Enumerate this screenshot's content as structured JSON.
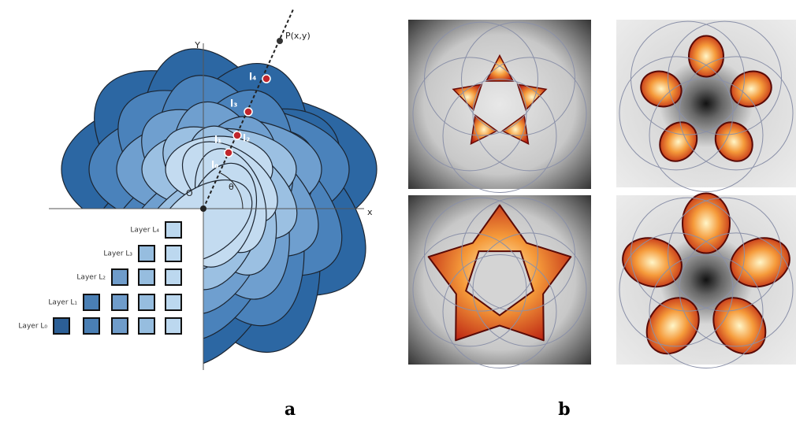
{
  "panel_a": {
    "axis_y": "Y",
    "axis_x": "x",
    "origin": "O",
    "angle": "θ",
    "point": "P(x,y)",
    "ray_labels": [
      "l₄",
      "l₃",
      "l₂",
      "l₁",
      "l₀"
    ],
    "layers": [
      "Layer L₄",
      "Layer L₃",
      "Layer L₂",
      "Layer L₁",
      "Layer L₀"
    ]
  },
  "captions": [
    "a",
    "b"
  ]
}
